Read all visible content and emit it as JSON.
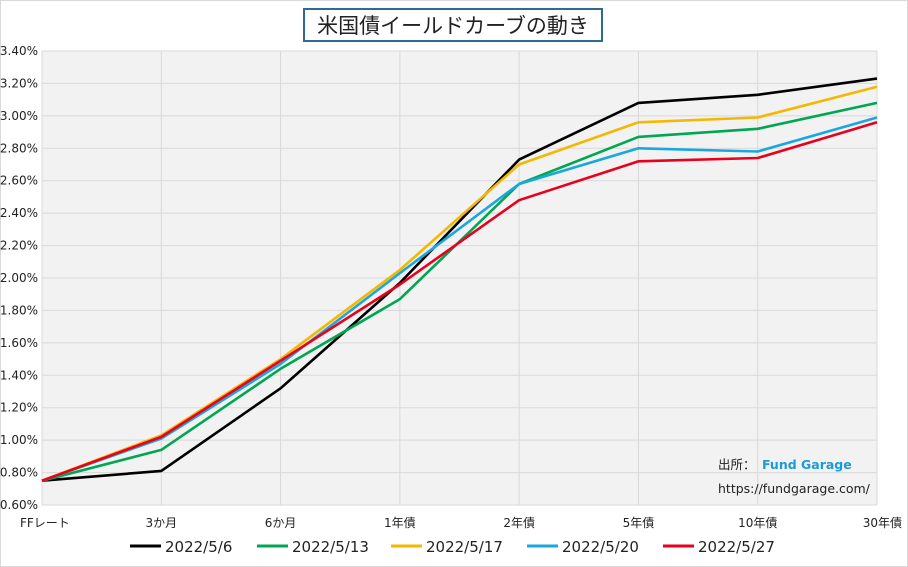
{
  "chart_data": {
    "type": "line",
    "title": "米国債イールドカーブの動き",
    "categories": [
      "FFレート",
      "3か月",
      "6か月",
      "1年債",
      "2年債",
      "5年債",
      "10年債",
      "30年債"
    ],
    "ylim": [
      0.6,
      3.4
    ],
    "yticks": [
      "0.60%",
      "0.80%",
      "1.00%",
      "1.20%",
      "1.40%",
      "1.60%",
      "1.80%",
      "2.00%",
      "2.20%",
      "2.40%",
      "2.60%",
      "2.80%",
      "3.00%",
      "3.20%",
      "3.40%"
    ],
    "grid": true,
    "legend_position": "bottom",
    "series": [
      {
        "name": "2022/5/6",
        "color": "#000000",
        "values": [
          0.75,
          0.81,
          1.32,
          1.97,
          2.73,
          3.08,
          3.13,
          3.23
        ]
      },
      {
        "name": "2022/5/13",
        "color": "#00a651",
        "values": [
          0.75,
          0.94,
          1.44,
          1.87,
          2.58,
          2.87,
          2.92,
          3.08
        ]
      },
      {
        "name": "2022/5/17",
        "color": "#f5b800",
        "values": [
          0.75,
          1.03,
          1.5,
          2.05,
          2.7,
          2.96,
          2.99,
          3.18
        ]
      },
      {
        "name": "2022/5/20",
        "color": "#1aa7e0",
        "values": [
          0.75,
          1.01,
          1.47,
          2.03,
          2.58,
          2.8,
          2.78,
          2.99
        ]
      },
      {
        "name": "2022/5/27",
        "color": "#e8001c",
        "values": [
          0.75,
          1.02,
          1.49,
          1.96,
          2.48,
          2.72,
          2.74,
          2.96
        ]
      }
    ]
  },
  "source": {
    "label": "出所：",
    "brand": "Fund Garage",
    "url": "https://fundgarage.com/"
  }
}
